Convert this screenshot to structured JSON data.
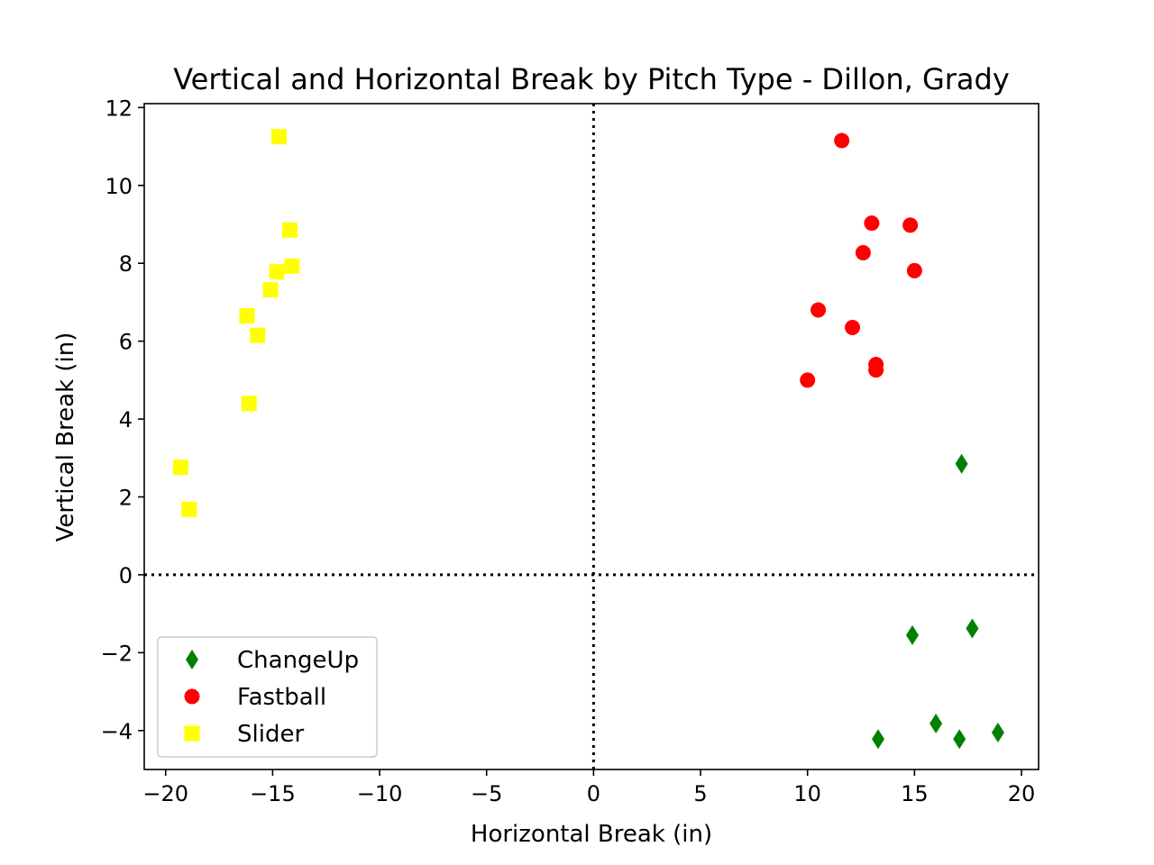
{
  "chart_data": {
    "type": "scatter",
    "title": "Vertical and Horizontal Break by Pitch Type - Dillon, Grady",
    "xlabel": "Horizontal Break (in)",
    "ylabel": "Vertical Break (in)",
    "xlim": [
      -21,
      20.8
    ],
    "ylim": [
      -5,
      12.1
    ],
    "xticks": [
      -20,
      -15,
      -10,
      -5,
      0,
      5,
      10,
      15,
      20
    ],
    "yticks": [
      -4,
      -2,
      0,
      2,
      4,
      6,
      8,
      10,
      12
    ],
    "xtick_labels": [
      "−20",
      "−15",
      "−10",
      "−5",
      "0",
      "5",
      "10",
      "15",
      "20"
    ],
    "ytick_labels": [
      "−4",
      "−2",
      "0",
      "2",
      "4",
      "6",
      "8",
      "10",
      "12"
    ],
    "reference_lines": {
      "x": 0,
      "y": 0,
      "style": "dotted",
      "color": "#000000"
    },
    "grid": false,
    "legend_position": "lower-left",
    "series": [
      {
        "name": "ChangeUp",
        "marker": "diamond",
        "color": "#008000",
        "points": [
          [
            17.2,
            2.85
          ],
          [
            14.9,
            -1.55
          ],
          [
            17.7,
            -1.38
          ],
          [
            16.0,
            -3.82
          ],
          [
            18.9,
            -4.05
          ],
          [
            13.3,
            -4.22
          ],
          [
            17.1,
            -4.22
          ]
        ]
      },
      {
        "name": "Fastball",
        "marker": "circle",
        "color": "#ff0000",
        "points": [
          [
            11.6,
            11.15
          ],
          [
            13.0,
            9.03
          ],
          [
            14.8,
            8.98
          ],
          [
            12.6,
            8.27
          ],
          [
            15.0,
            7.81
          ],
          [
            10.5,
            6.8
          ],
          [
            12.1,
            6.35
          ],
          [
            13.2,
            5.4
          ],
          [
            13.2,
            5.26
          ],
          [
            10.0,
            5.0
          ]
        ]
      },
      {
        "name": "Slider",
        "marker": "square",
        "color": "#ffff00",
        "points": [
          [
            -14.7,
            11.25
          ],
          [
            -14.2,
            8.85
          ],
          [
            -14.1,
            7.93
          ],
          [
            -14.8,
            7.78
          ],
          [
            -15.1,
            7.32
          ],
          [
            -16.2,
            6.65
          ],
          [
            -15.7,
            6.15
          ],
          [
            -16.1,
            4.4
          ],
          [
            -19.3,
            2.76
          ],
          [
            -18.9,
            1.68
          ]
        ]
      }
    ]
  }
}
